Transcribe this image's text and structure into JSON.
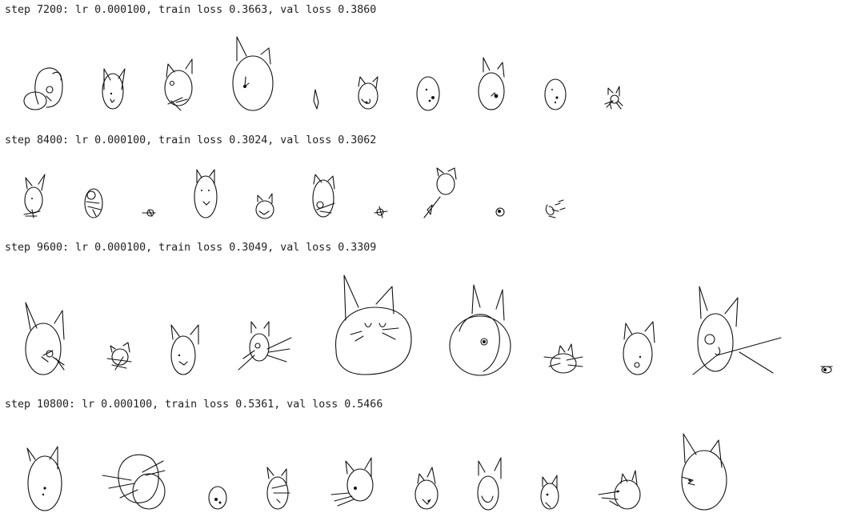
{
  "log_lines": [
    "step 7200: lr 0.000100, train loss 0.3663, val loss 0.3860",
    "step 8400: lr 0.000100, train loss 0.3024, val loss 0.3062",
    "step 9600: lr 0.000100, train loss 0.3049, val loss 0.3309",
    "step 10800: lr 0.000100, train loss 0.5361, val loss 0.5466"
  ]
}
